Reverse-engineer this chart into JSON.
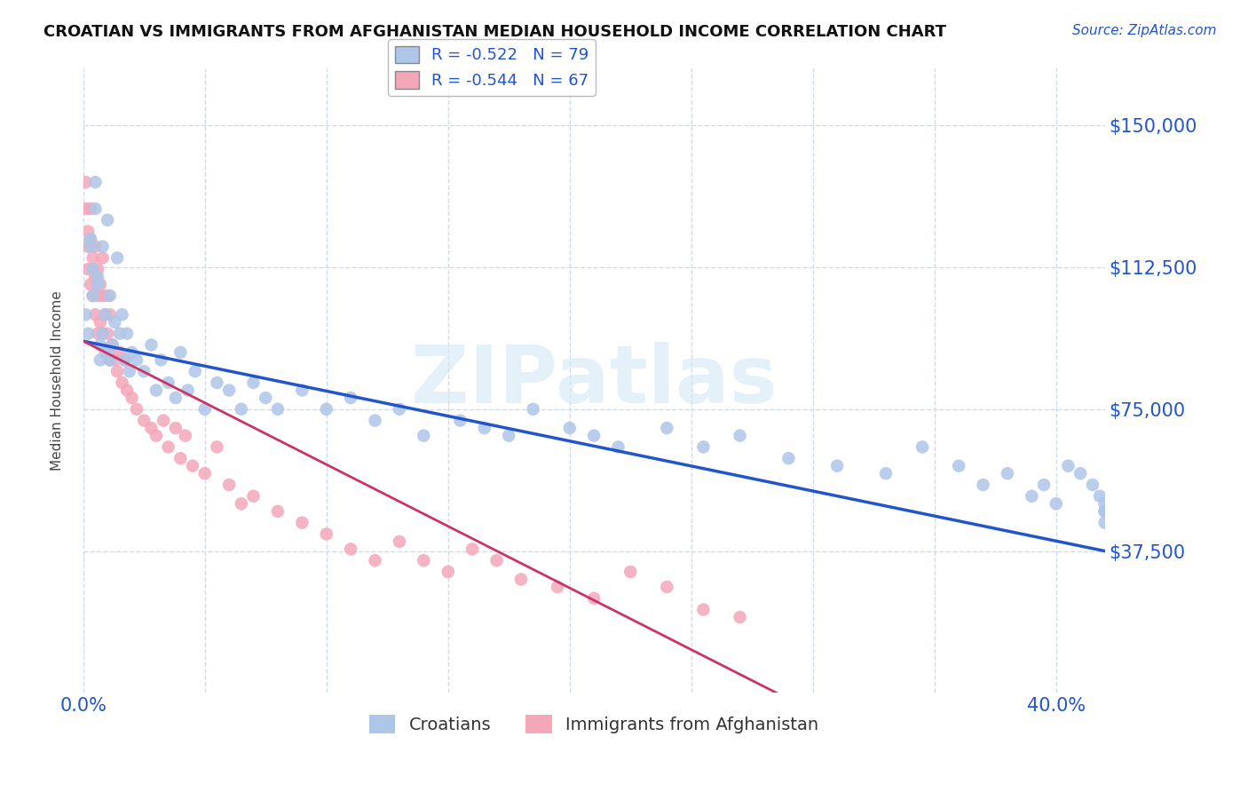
{
  "title": "CROATIAN VS IMMIGRANTS FROM AFGHANISTAN MEDIAN HOUSEHOLD INCOME CORRELATION CHART",
  "source_text": "Source: ZipAtlas.com",
  "ylabel": "Median Household Income",
  "watermark": "ZIPatlas",
  "legend_entry1_label": "R = -0.522   N = 79",
  "legend_entry2_label": "R = -0.544   N = 67",
  "legend_croatians": "Croatians",
  "legend_afghanistan": "Immigrants from Afghanistan",
  "color_croatians": "#aec6e8",
  "color_afghanistan": "#f4a7b9",
  "color_line_croatians": "#2255cc",
  "color_line_afghanistan": "#cc3366",
  "color_axis_labels": "#2255cc",
  "ytick_labels": [
    "$37,500",
    "$75,000",
    "$112,500",
    "$150,000"
  ],
  "ytick_values": [
    37500,
    75000,
    112500,
    150000
  ],
  "ylim": [
    0,
    165000
  ],
  "xlim": [
    0.0,
    0.42
  ],
  "xtick_values": [
    0.0,
    0.05,
    0.1,
    0.15,
    0.2,
    0.25,
    0.3,
    0.35,
    0.4
  ],
  "background_color": "#ffffff",
  "grid_color": "#ccdded",
  "line_croatians_x0": 0.0,
  "line_croatians_x1": 0.42,
  "line_croatians_y0": 93000,
  "line_croatians_y1": 37500,
  "line_afghanistan_x0": 0.0,
  "line_afghanistan_x1": 0.285,
  "line_afghanistan_y0": 93000,
  "line_afghanistan_y1": 0,
  "croatians_x": [
    0.001,
    0.002,
    0.003,
    0.003,
    0.004,
    0.004,
    0.005,
    0.005,
    0.006,
    0.006,
    0.007,
    0.007,
    0.008,
    0.008,
    0.009,
    0.01,
    0.01,
    0.011,
    0.011,
    0.012,
    0.013,
    0.014,
    0.015,
    0.016,
    0.017,
    0.018,
    0.019,
    0.02,
    0.022,
    0.025,
    0.028,
    0.03,
    0.032,
    0.035,
    0.038,
    0.04,
    0.043,
    0.046,
    0.05,
    0.055,
    0.06,
    0.065,
    0.07,
    0.075,
    0.08,
    0.09,
    0.1,
    0.11,
    0.12,
    0.13,
    0.14,
    0.155,
    0.165,
    0.175,
    0.185,
    0.2,
    0.21,
    0.22,
    0.24,
    0.255,
    0.27,
    0.29,
    0.31,
    0.33,
    0.345,
    0.36,
    0.37,
    0.38,
    0.39,
    0.395,
    0.4,
    0.405,
    0.41,
    0.415,
    0.418,
    0.42,
    0.42,
    0.42,
    0.42
  ],
  "croatians_y": [
    100000,
    95000,
    120000,
    118000,
    105000,
    112000,
    128000,
    135000,
    110000,
    108000,
    92000,
    88000,
    118000,
    95000,
    100000,
    125000,
    90000,
    105000,
    88000,
    92000,
    98000,
    115000,
    95000,
    100000,
    88000,
    95000,
    85000,
    90000,
    88000,
    85000,
    92000,
    80000,
    88000,
    82000,
    78000,
    90000,
    80000,
    85000,
    75000,
    82000,
    80000,
    75000,
    82000,
    78000,
    75000,
    80000,
    75000,
    78000,
    72000,
    75000,
    68000,
    72000,
    70000,
    68000,
    75000,
    70000,
    68000,
    65000,
    70000,
    65000,
    68000,
    62000,
    60000,
    58000,
    65000,
    60000,
    55000,
    58000,
    52000,
    55000,
    50000,
    60000,
    58000,
    55000,
    52000,
    48000,
    45000,
    50000,
    48000
  ],
  "afghanistan_x": [
    0.001,
    0.001,
    0.002,
    0.002,
    0.002,
    0.003,
    0.003,
    0.003,
    0.004,
    0.004,
    0.005,
    0.005,
    0.005,
    0.006,
    0.006,
    0.006,
    0.007,
    0.007,
    0.008,
    0.008,
    0.008,
    0.009,
    0.009,
    0.01,
    0.01,
    0.011,
    0.011,
    0.012,
    0.013,
    0.014,
    0.015,
    0.016,
    0.017,
    0.018,
    0.02,
    0.022,
    0.025,
    0.028,
    0.03,
    0.033,
    0.035,
    0.038,
    0.04,
    0.042,
    0.045,
    0.05,
    0.055,
    0.06,
    0.065,
    0.07,
    0.08,
    0.09,
    0.1,
    0.11,
    0.12,
    0.13,
    0.14,
    0.15,
    0.16,
    0.17,
    0.18,
    0.195,
    0.21,
    0.225,
    0.24,
    0.255,
    0.27
  ],
  "afghanistan_y": [
    135000,
    128000,
    122000,
    118000,
    112000,
    128000,
    120000,
    108000,
    115000,
    105000,
    118000,
    110000,
    100000,
    112000,
    105000,
    95000,
    108000,
    98000,
    115000,
    105000,
    95000,
    100000,
    90000,
    105000,
    95000,
    100000,
    88000,
    92000,
    88000,
    85000,
    90000,
    82000,
    88000,
    80000,
    78000,
    75000,
    72000,
    70000,
    68000,
    72000,
    65000,
    70000,
    62000,
    68000,
    60000,
    58000,
    65000,
    55000,
    50000,
    52000,
    48000,
    45000,
    42000,
    38000,
    35000,
    40000,
    35000,
    32000,
    38000,
    35000,
    30000,
    28000,
    25000,
    32000,
    28000,
    22000,
    20000
  ]
}
